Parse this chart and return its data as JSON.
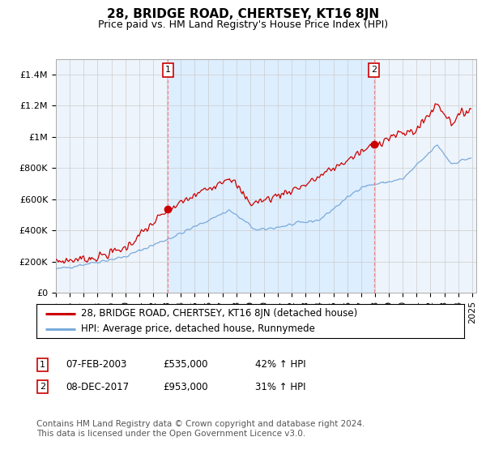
{
  "title": "28, BRIDGE ROAD, CHERTSEY, KT16 8JN",
  "subtitle": "Price paid vs. HM Land Registry's House Price Index (HPI)",
  "ylim": [
    0,
    1500000
  ],
  "yticks": [
    0,
    200000,
    400000,
    600000,
    800000,
    1000000,
    1200000,
    1400000
  ],
  "ytick_labels": [
    "£0",
    "£200K",
    "£400K",
    "£600K",
    "£800K",
    "£1M",
    "£1.2M",
    "£1.4M"
  ],
  "xlim_start": 1995,
  "xlim_end": 2025.3,
  "purchase1_year": 2003.08,
  "purchase1_price": 535000,
  "purchase1_label": "1",
  "purchase2_year": 2017.92,
  "purchase2_price": 953000,
  "purchase2_label": "2",
  "line1_color": "#cc0000",
  "line2_color": "#7aabdb",
  "dashed_color": "#ee8888",
  "shade_color": "#ddeeff",
  "plot_bg_color": "#eef4fb",
  "marker_box_color": "#cc0000",
  "legend_line1": "28, BRIDGE ROAD, CHERTSEY, KT16 8JN (detached house)",
  "legend_line2": "HPI: Average price, detached house, Runnymede",
  "purchase1_text_date": "07-FEB-2003",
  "purchase1_text_price": "£535,000",
  "purchase1_text_hpi": "42% ↑ HPI",
  "purchase2_text_date": "08-DEC-2017",
  "purchase2_text_price": "£953,000",
  "purchase2_text_hpi": "31% ↑ HPI",
  "footnote": "Contains HM Land Registry data © Crown copyright and database right 2024.\nThis data is licensed under the Open Government Licence v3.0.",
  "bg_color": "#ffffff",
  "grid_color": "#cccccc",
  "title_fontsize": 11,
  "subtitle_fontsize": 9,
  "tick_fontsize": 8,
  "legend_fontsize": 8.5,
  "footnote_fontsize": 7.5
}
